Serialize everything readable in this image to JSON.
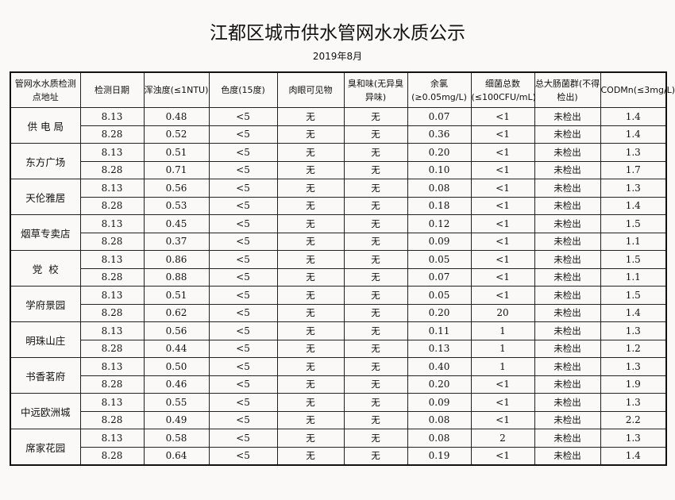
{
  "title": "江都区城市供水管网水水质公示",
  "subtitle": "2019年8月",
  "columns": [
    "管网水水质检测点地址",
    "检测日期",
    "浑浊度(≤1NTU)",
    "色度(15度)",
    "肉眼可见物",
    "臭和味(无异臭异味)",
    "余氯(≥0.05mg/L)",
    "细菌总数(≤100CFU/mL)",
    "总大肠菌群(不得检出)",
    "CODMn(≤3mg/L)"
  ],
  "sites": [
    {
      "name": "供 电 局",
      "records": [
        [
          "8.13",
          "0.48",
          "<5",
          "无",
          "无",
          "0.07",
          "<1",
          "未检出",
          "1.4"
        ],
        [
          "8.28",
          "0.52",
          "<5",
          "无",
          "无",
          "0.36",
          "<1",
          "未检出",
          "1.4"
        ]
      ]
    },
    {
      "name": "东方广场",
      "records": [
        [
          "8.13",
          "0.51",
          "<5",
          "无",
          "无",
          "0.20",
          "<1",
          "未检出",
          "1.3"
        ],
        [
          "8.28",
          "0.71",
          "<5",
          "无",
          "无",
          "0.10",
          "<1",
          "未检出",
          "1.7"
        ]
      ]
    },
    {
      "name": "天伦雅居",
      "records": [
        [
          "8.13",
          "0.56",
          "<5",
          "无",
          "无",
          "0.08",
          "<1",
          "未检出",
          "1.3"
        ],
        [
          "8.28",
          "0.53",
          "<5",
          "无",
          "无",
          "0.18",
          "<1",
          "未检出",
          "1.4"
        ]
      ]
    },
    {
      "name": "烟草专卖店",
      "records": [
        [
          "8.13",
          "0.45",
          "<5",
          "无",
          "无",
          "0.12",
          "<1",
          "未检出",
          "1.5"
        ],
        [
          "8.28",
          "0.37",
          "<5",
          "无",
          "无",
          "0.09",
          "<1",
          "未检出",
          "1.1"
        ]
      ]
    },
    {
      "name": "党  校",
      "records": [
        [
          "8.13",
          "0.86",
          "<5",
          "无",
          "无",
          "0.05",
          "<1",
          "未检出",
          "1.5"
        ],
        [
          "8.28",
          "0.88",
          "<5",
          "无",
          "无",
          "0.07",
          "<1",
          "未检出",
          "1.1"
        ]
      ]
    },
    {
      "name": "学府景园",
      "records": [
        [
          "8.13",
          "0.51",
          "<5",
          "无",
          "无",
          "0.05",
          "<1",
          "未检出",
          "1.5"
        ],
        [
          "8.28",
          "0.62",
          "<5",
          "无",
          "无",
          "0.20",
          "20",
          "未检出",
          "1.4"
        ]
      ]
    },
    {
      "name": "明珠山庄",
      "records": [
        [
          "8.13",
          "0.56",
          "<5",
          "无",
          "无",
          "0.11",
          "1",
          "未检出",
          "1.3"
        ],
        [
          "8.28",
          "0.44",
          "<5",
          "无",
          "无",
          "0.13",
          "1",
          "未检出",
          "1.2"
        ]
      ]
    },
    {
      "name": "书香茗府",
      "records": [
        [
          "8.13",
          "0.50",
          "<5",
          "无",
          "无",
          "0.40",
          "1",
          "未检出",
          "1.3"
        ],
        [
          "8.28",
          "0.46",
          "<5",
          "无",
          "无",
          "0.20",
          "<1",
          "未检出",
          "1.9"
        ]
      ]
    },
    {
      "name": "中远欧洲城",
      "records": [
        [
          "8.13",
          "0.55",
          "<5",
          "无",
          "无",
          "0.09",
          "<1",
          "未检出",
          "1.3"
        ],
        [
          "8.28",
          "0.49",
          "<5",
          "无",
          "无",
          "0.08",
          "<1",
          "未检出",
          "2.2"
        ]
      ]
    },
    {
      "name": "席家花园",
      "records": [
        [
          "8.13",
          "0.58",
          "<5",
          "无",
          "无",
          "0.08",
          "2",
          "未检出",
          "1.3"
        ],
        [
          "8.28",
          "0.64",
          "<5",
          "无",
          "无",
          "0.19",
          "<1",
          "未检出",
          "1.4"
        ]
      ]
    }
  ]
}
